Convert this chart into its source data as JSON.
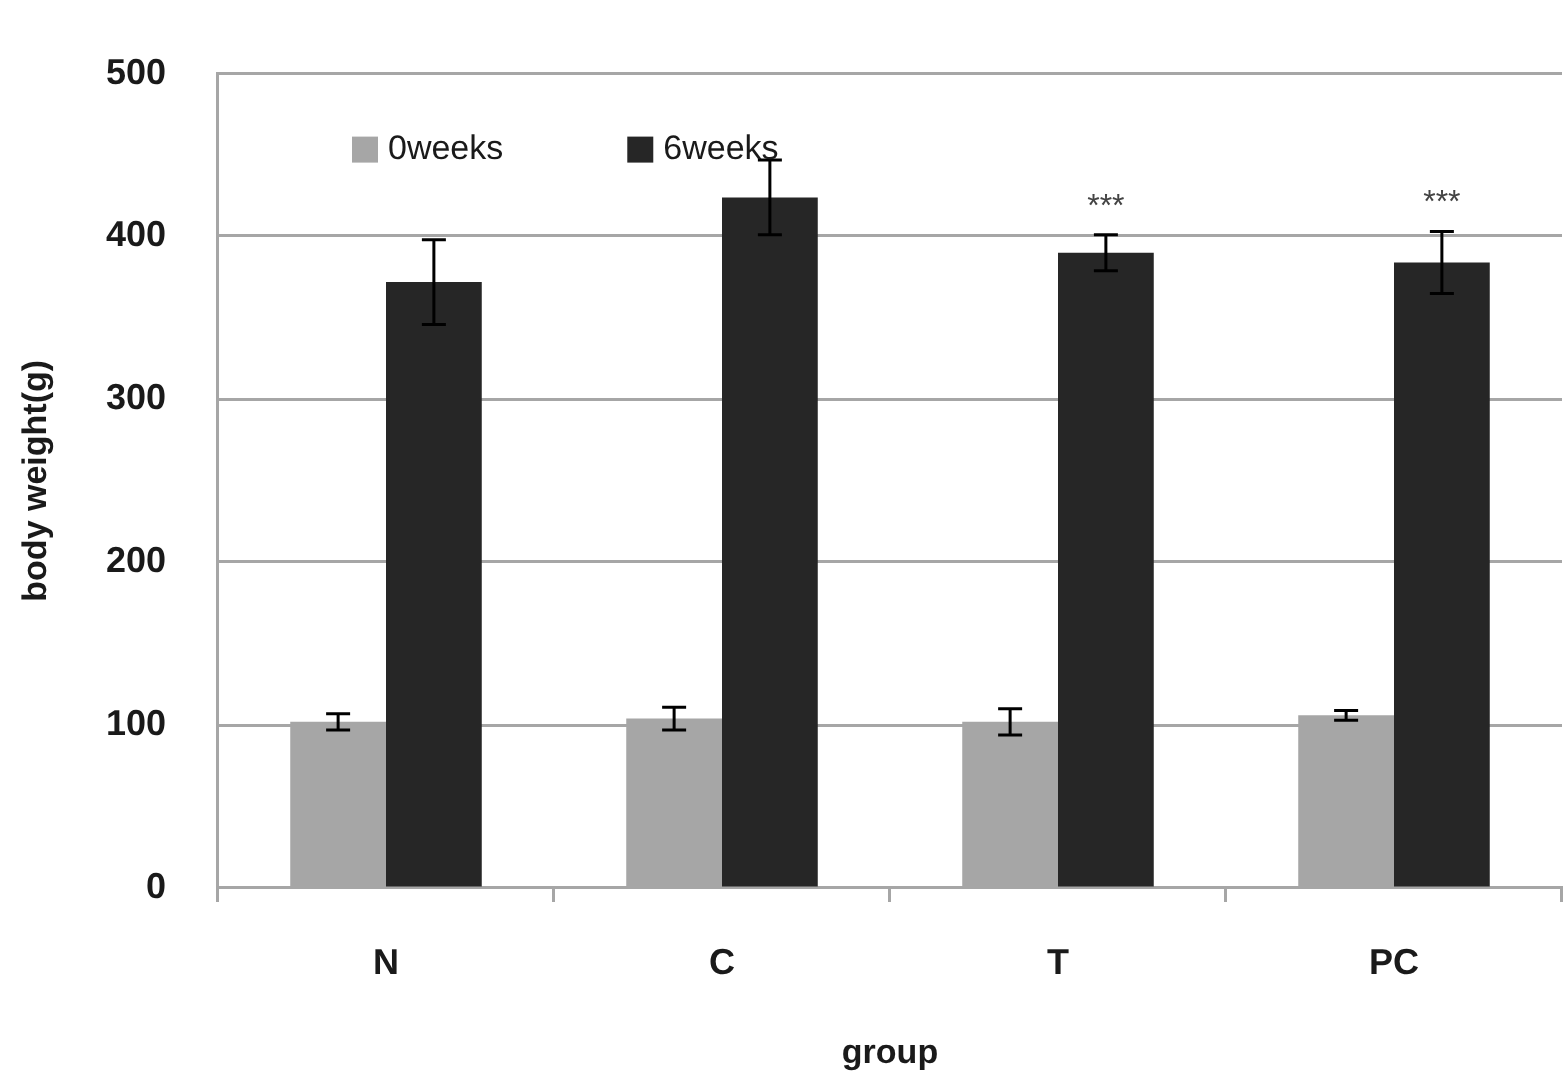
{
  "chart_data": {
    "type": "bar",
    "xlabel": "group",
    "ylabel": "body weight(g)",
    "categories": [
      "N",
      "C",
      "T",
      "PC"
    ],
    "series": [
      {
        "name": "0weeks",
        "color": "#a6a6a6",
        "values": [
          102,
          104,
          102,
          106
        ],
        "errors": [
          5,
          7,
          8,
          3
        ]
      },
      {
        "name": "6weeks",
        "color": "#262626",
        "values": [
          372,
          424,
          390,
          384
        ],
        "errors": [
          26,
          23,
          11,
          19
        ]
      }
    ],
    "ylim": [
      0,
      500
    ],
    "yticks": [
      0,
      100,
      200,
      300,
      400,
      500
    ],
    "grid": "y",
    "legend": "top left",
    "annotations": [
      {
        "text": "***",
        "x": "T",
        "y": 390
      },
      {
        "text": "***",
        "x": "PC",
        "y": 384
      }
    ]
  }
}
